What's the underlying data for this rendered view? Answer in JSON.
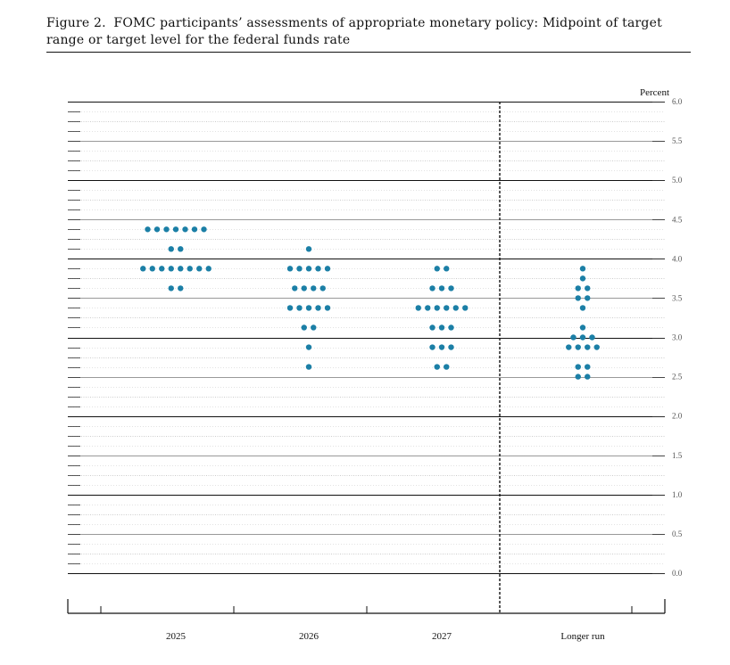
{
  "figure": {
    "label": "Figure 2.",
    "text": "FOMC participants’ assessments of appropriate monetary policy: Midpoint of target range or target level for the federal funds rate"
  },
  "chart_data": {
    "type": "scatter",
    "title": "Figure 2. FOMC participants’ assessments of appropriate monetary policy: Midpoint of target range or target level for the federal funds rate",
    "ylabel": "Percent",
    "ylim": [
      0.0,
      6.0
    ],
    "yticks": [
      "0.0",
      "0.5",
      "1.0",
      "1.5",
      "2.0",
      "2.5",
      "3.0",
      "3.5",
      "4.0",
      "4.5",
      "5.0",
      "5.5",
      "6.0"
    ],
    "categories": [
      "2025",
      "2026",
      "2027",
      "Longer run"
    ],
    "grid": true,
    "dot_color": "#1b7fa6",
    "longer_run_separator": "dashed vertical line before Longer run",
    "dots": [
      {
        "category": "2025",
        "rates": [
          {
            "y": 4.375,
            "count": 7
          },
          {
            "y": 4.125,
            "count": 2
          },
          {
            "y": 3.875,
            "count": 8
          },
          {
            "y": 3.625,
            "count": 2
          }
        ]
      },
      {
        "category": "2026",
        "rates": [
          {
            "y": 4.125,
            "count": 1
          },
          {
            "y": 3.875,
            "count": 5
          },
          {
            "y": 3.625,
            "count": 4
          },
          {
            "y": 3.375,
            "count": 5
          },
          {
            "y": 3.125,
            "count": 2
          },
          {
            "y": 2.875,
            "count": 1
          },
          {
            "y": 2.625,
            "count": 1
          }
        ]
      },
      {
        "category": "2027",
        "rates": [
          {
            "y": 3.875,
            "count": 2
          },
          {
            "y": 3.625,
            "count": 3
          },
          {
            "y": 3.375,
            "count": 6
          },
          {
            "y": 3.125,
            "count": 3
          },
          {
            "y": 2.875,
            "count": 3
          },
          {
            "y": 2.625,
            "count": 2
          }
        ]
      },
      {
        "category": "Longer run",
        "rates": [
          {
            "y": 3.875,
            "count": 1
          },
          {
            "y": 3.75,
            "count": 1
          },
          {
            "y": 3.625,
            "count": 2
          },
          {
            "y": 3.5,
            "count": 2
          },
          {
            "y": 3.375,
            "count": 1
          },
          {
            "y": 3.125,
            "count": 1
          },
          {
            "y": 3.0,
            "count": 3
          },
          {
            "y": 2.875,
            "count": 4
          },
          {
            "y": 2.625,
            "count": 2
          },
          {
            "y": 2.5,
            "count": 2
          }
        ]
      }
    ]
  }
}
